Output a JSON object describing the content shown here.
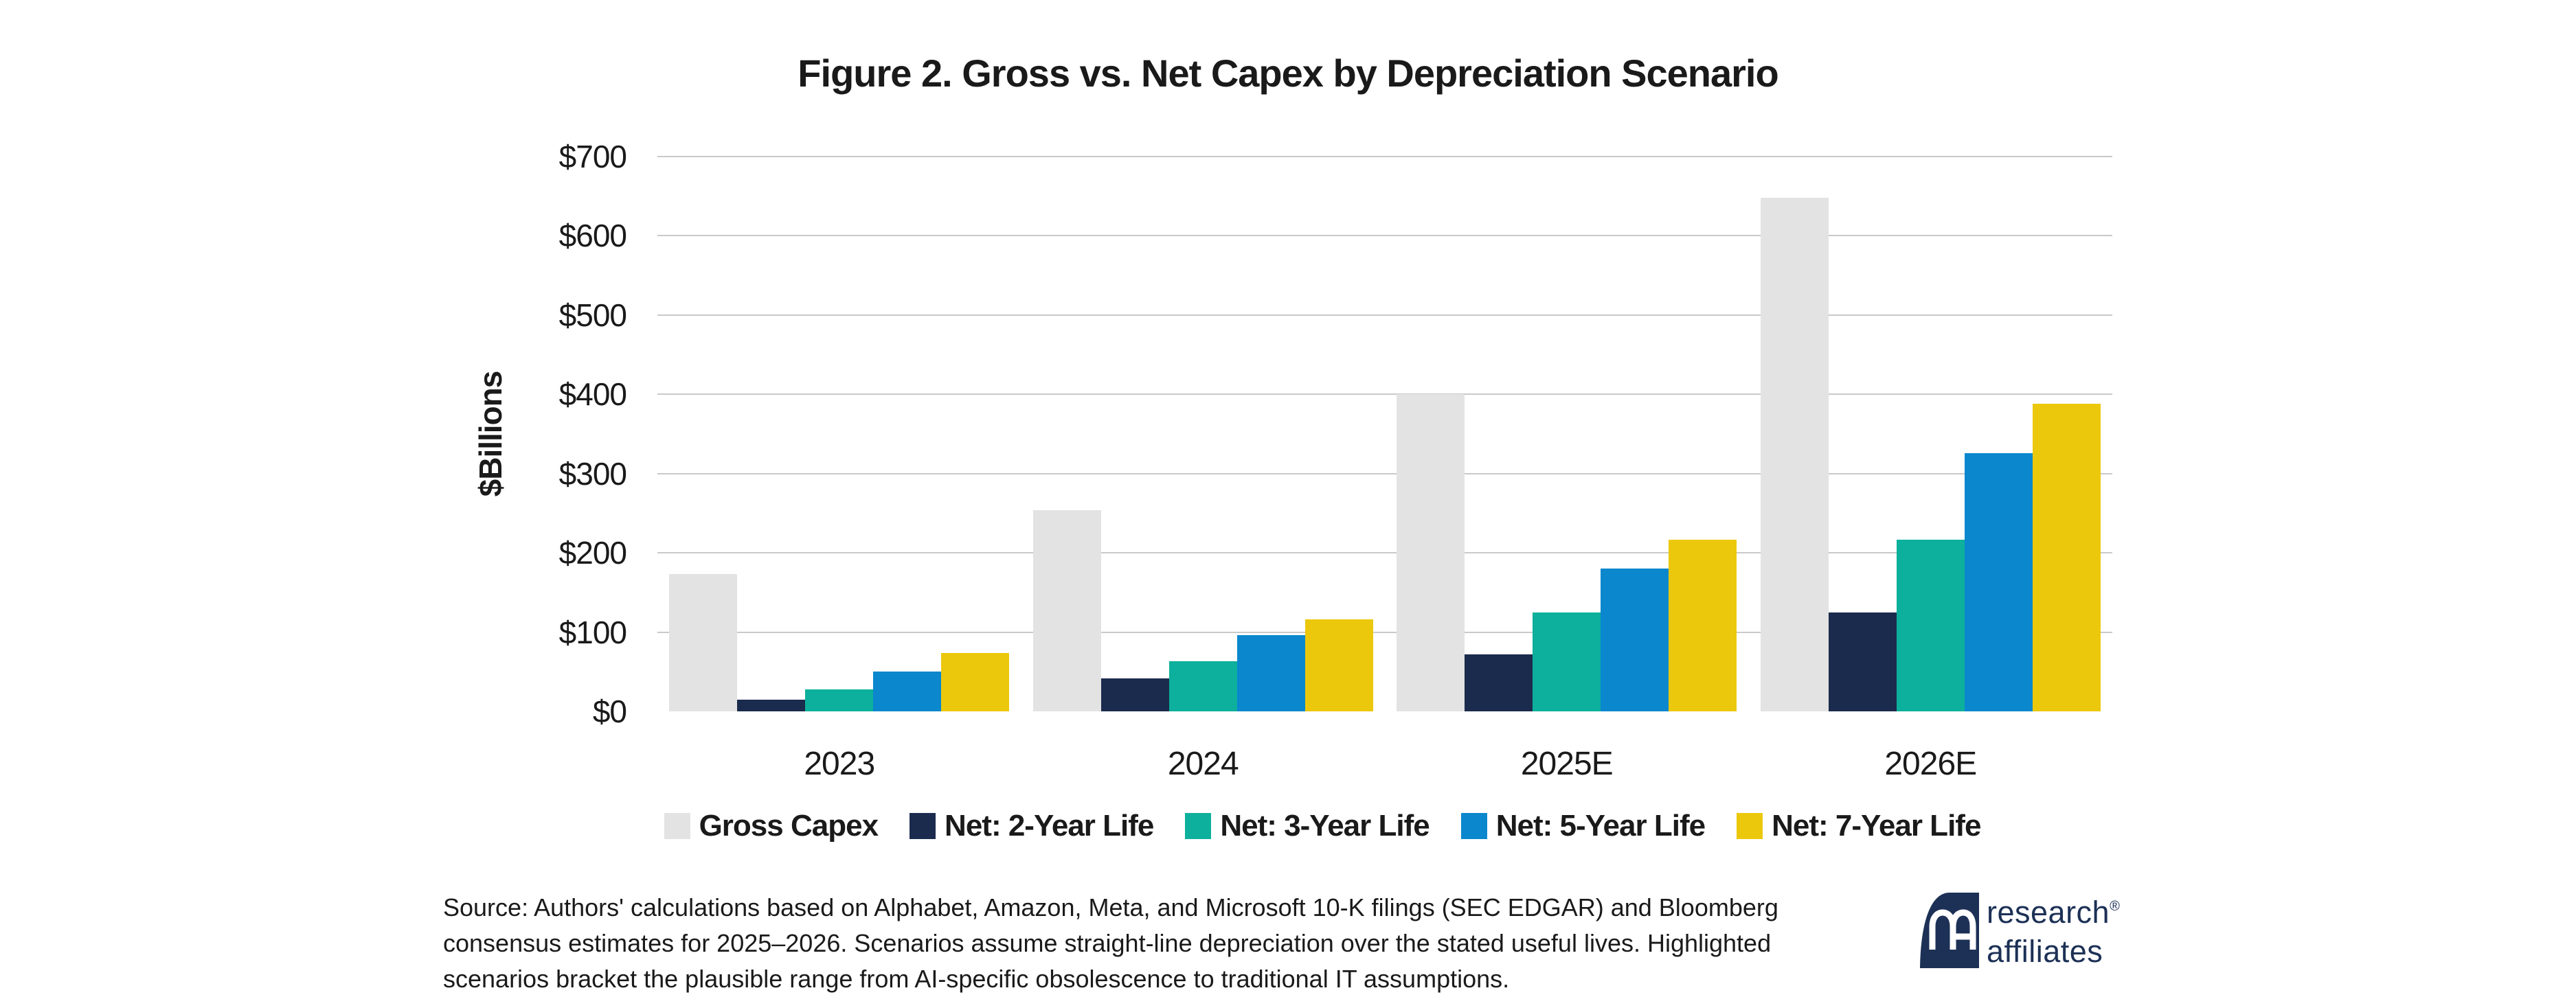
{
  "chart_data": {
    "type": "bar",
    "title": "Figure 2. Gross vs. Net Capex by Depreciation Scenario",
    "ylabel": "$Billions",
    "categories": [
      "2023",
      "2024",
      "2025E",
      "2026E"
    ],
    "series": [
      {
        "name": "Gross Capex",
        "color": "#e3e3e3",
        "values": [
          173,
          254,
          400,
          648
        ]
      },
      {
        "name": "Net: 2-Year Life",
        "color": "#1b2b4d",
        "values": [
          15,
          42,
          72,
          125
        ]
      },
      {
        "name": "Net: 3-Year Life",
        "color": "#0db09c",
        "values": [
          28,
          63,
          125,
          217
        ]
      },
      {
        "name": "Net: 5-Year Life",
        "color": "#0a87cd",
        "values": [
          50,
          96,
          180,
          326
        ]
      },
      {
        "name": "Net: 7-Year Life",
        "color": "#ecc80d",
        "values": [
          74,
          116,
          217,
          388
        ]
      }
    ],
    "ylim": [
      0,
      700
    ],
    "yticks": [
      0,
      100,
      200,
      300,
      400,
      500,
      600,
      700
    ],
    "ytick_labels": [
      "$0",
      "$100",
      "$200",
      "$300",
      "$400",
      "$500",
      "$600",
      "$700"
    ],
    "grid": "horizontal",
    "legend_position": "bottom",
    "gridline_color": "#c9c9c9"
  },
  "source_note": {
    "lines": [
      "Source: Authors' calculations based on Alphabet, Amazon, Meta, and Microsoft 10-K filings (SEC EDGAR) and Bloomberg",
      "consensus estimates for 2025–2026. Scenarios assume straight-line depreciation over the stated useful lives. Highlighted",
      "scenarios bracket the plausible range from AI-specific obsolescence to traditional IT assumptions."
    ]
  },
  "logo": {
    "line1": "research",
    "line2": "affiliates",
    "reg": "®",
    "color": "#1d3156"
  }
}
